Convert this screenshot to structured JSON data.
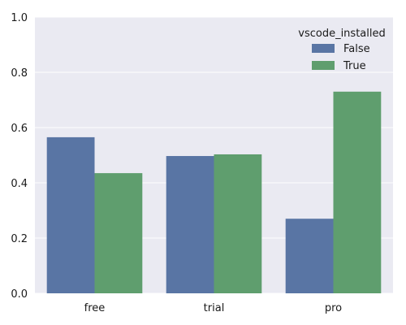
{
  "chart_data": {
    "type": "bar",
    "categories": [
      "free",
      "trial",
      "pro"
    ],
    "series": [
      {
        "name": "False",
        "values": [
          0.565,
          0.497,
          0.27
        ],
        "color": "#5975a4"
      },
      {
        "name": "True",
        "values": [
          0.435,
          0.503,
          0.73
        ],
        "color": "#5f9e6e"
      }
    ],
    "title": "",
    "xlabel": "",
    "ylabel": "",
    "ylim": [
      0,
      1.0
    ],
    "yticks": [
      "0.0",
      "0.2",
      "0.4",
      "0.6",
      "0.8",
      "1.0"
    ],
    "grid": true,
    "background": "#eaeaf2",
    "legend": {
      "title": "vscode_installed",
      "placement": "top-right"
    }
  }
}
